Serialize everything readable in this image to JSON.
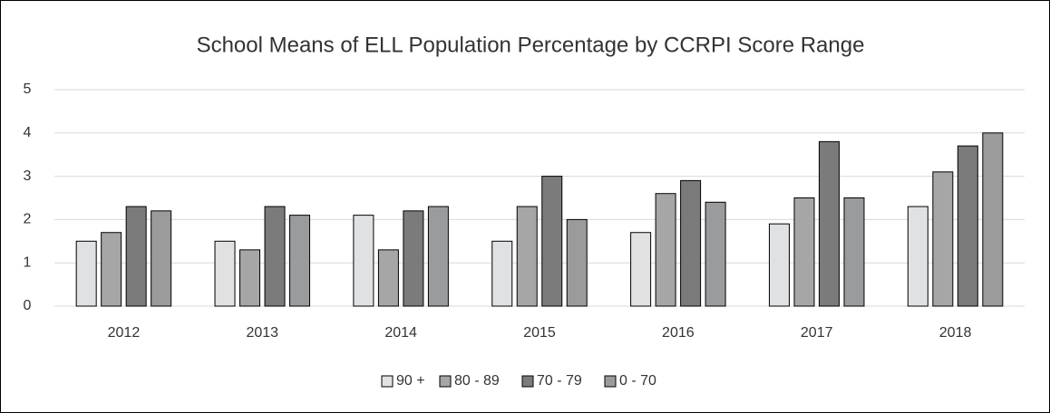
{
  "chart_data": {
    "type": "bar",
    "title": "School Means of ELL Population Percentage by CCRPI Score Range",
    "categories": [
      "2012",
      "2013",
      "2014",
      "2015",
      "2016",
      "2017",
      "2018"
    ],
    "series": [
      {
        "name": "90 +",
        "color": "#e0e1e2",
        "values": [
          1.5,
          1.5,
          2.1,
          1.5,
          1.7,
          1.9,
          2.3
        ]
      },
      {
        "name": "80 - 89",
        "color": "#a6a6a6",
        "values": [
          1.7,
          1.3,
          1.3,
          2.3,
          2.6,
          2.5,
          3.1
        ]
      },
      {
        "name": "70 - 79",
        "color": "#7b7b7b",
        "values": [
          2.3,
          2.3,
          2.2,
          3.0,
          2.9,
          3.8,
          3.7
        ]
      },
      {
        "name": "0 - 70",
        "color": "#9a9b9c",
        "values": [
          2.2,
          2.1,
          2.3,
          2.0,
          2.4,
          2.5,
          4.0
        ]
      }
    ],
    "ylim": [
      0,
      5
    ],
    "yticks": [
      0,
      1,
      2,
      3,
      4,
      5
    ],
    "grid": true,
    "legend": "bottom"
  }
}
